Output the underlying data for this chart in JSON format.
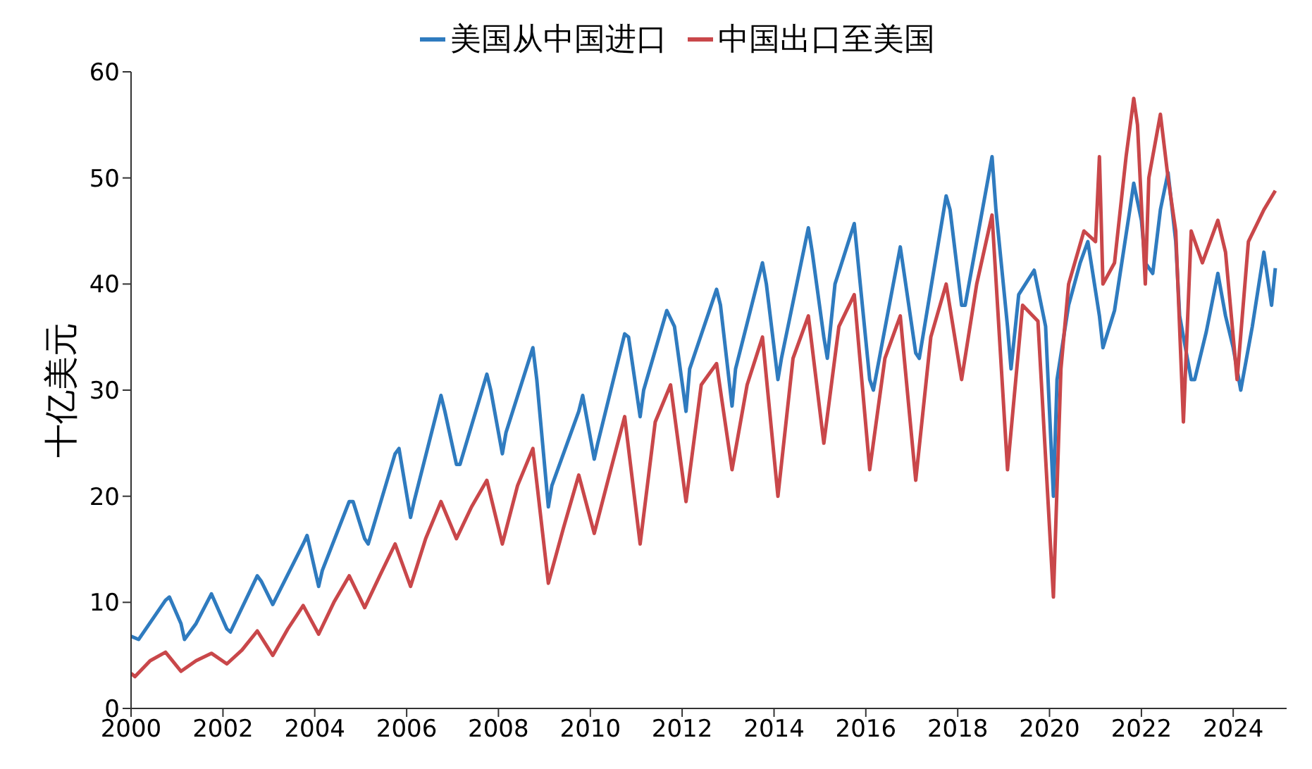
{
  "chart_data": {
    "type": "line",
    "ylabel": "十亿美元",
    "legend": "top",
    "marker": "none",
    "line_style": "solid",
    "xlim": [
      "2000-01",
      "2025-03"
    ],
    "xticks": [
      "2000",
      "2002",
      "2004",
      "2006",
      "2008",
      "2010",
      "2012",
      "2014",
      "2016",
      "2018",
      "2020",
      "2022",
      "2024"
    ],
    "ylim": [
      0,
      60
    ],
    "yticks": [
      0,
      10,
      20,
      30,
      40,
      50,
      60
    ],
    "series": [
      {
        "name": "美国从中国进口",
        "color": "#2f7bbf",
        "x": [
          "2000-01",
          "2000-03",
          "2000-10",
          "2000-11",
          "2001-02",
          "2001-03",
          "2001-06",
          "2001-10",
          "2002-02",
          "2002-03",
          "2002-10",
          "2002-11",
          "2003-02",
          "2003-10",
          "2003-11",
          "2004-02",
          "2004-03",
          "2004-10",
          "2004-11",
          "2005-02",
          "2005-03",
          "2005-10",
          "2005-11",
          "2006-02",
          "2006-03",
          "2006-10",
          "2006-11",
          "2007-02",
          "2007-03",
          "2007-10",
          "2007-11",
          "2008-02",
          "2008-03",
          "2008-10",
          "2008-11",
          "2009-02",
          "2009-03",
          "2009-10",
          "2009-11",
          "2010-02",
          "2010-03",
          "2010-10",
          "2010-11",
          "2011-02",
          "2011-03",
          "2011-09",
          "2011-11",
          "2012-02",
          "2012-03",
          "2012-10",
          "2012-11",
          "2013-02",
          "2013-03",
          "2013-10",
          "2013-11",
          "2014-02",
          "2014-03",
          "2014-10",
          "2014-11",
          "2015-02",
          "2015-03",
          "2015-05",
          "2015-10",
          "2015-11",
          "2016-02",
          "2016-03",
          "2016-10",
          "2016-11",
          "2017-02",
          "2017-03",
          "2017-10",
          "2017-11",
          "2018-02",
          "2018-03",
          "2018-10",
          "2018-11",
          "2019-02",
          "2019-03",
          "2019-05",
          "2019-09",
          "2019-12",
          "2020-02",
          "2020-03",
          "2020-06",
          "2020-09",
          "2020-11",
          "2021-02",
          "2021-03",
          "2021-06",
          "2021-10",
          "2021-11",
          "2022-01",
          "2022-02",
          "2022-04",
          "2022-06",
          "2022-08",
          "2022-10",
          "2022-11",
          "2023-02",
          "2023-03",
          "2023-06",
          "2023-09",
          "2023-11",
          "2024-01",
          "2024-03",
          "2024-06",
          "2024-09",
          "2024-11",
          "2024-12"
        ],
        "values": [
          6.8,
          6.5,
          10.2,
          10.5,
          8,
          6.5,
          8,
          10.8,
          7.5,
          7.2,
          12.5,
          12,
          9.8,
          15.5,
          16.3,
          11.5,
          13,
          19.5,
          19.5,
          16,
          15.5,
          24,
          24.5,
          18,
          19.5,
          29.5,
          28,
          23,
          23,
          31.5,
          30,
          24,
          26,
          34,
          31,
          19,
          21,
          28,
          29.5,
          23.5,
          25,
          35.3,
          35,
          27.5,
          30,
          37.5,
          36,
          28,
          32,
          39.5,
          38,
          28.5,
          32,
          42,
          40,
          31,
          33,
          45.3,
          43,
          35,
          33,
          40,
          45.7,
          42,
          31,
          30,
          43.5,
          41,
          33.5,
          33,
          48.3,
          47,
          38,
          38,
          52,
          47,
          36,
          32,
          39,
          41.3,
          36,
          20,
          31,
          38,
          42,
          44,
          37,
          34,
          37.5,
          47,
          49.5,
          46,
          42,
          41,
          47,
          50.5,
          44,
          37,
          31,
          31,
          35.5,
          41,
          37,
          34,
          30,
          36,
          43,
          38,
          41.5
        ]
      },
      {
        "name": "中国出口至美国",
        "color": "#c9474a",
        "x": [
          "2000-01",
          "2000-02",
          "2000-06",
          "2000-10",
          "2001-02",
          "2001-06",
          "2001-10",
          "2002-02",
          "2002-06",
          "2002-10",
          "2003-02",
          "2003-06",
          "2003-10",
          "2004-02",
          "2004-06",
          "2004-10",
          "2005-02",
          "2005-06",
          "2005-10",
          "2006-02",
          "2006-06",
          "2006-10",
          "2007-02",
          "2007-06",
          "2007-10",
          "2008-02",
          "2008-06",
          "2008-10",
          "2009-02",
          "2009-06",
          "2009-10",
          "2010-02",
          "2010-06",
          "2010-10",
          "2011-02",
          "2011-06",
          "2011-10",
          "2012-02",
          "2012-06",
          "2012-10",
          "2013-02",
          "2013-06",
          "2013-10",
          "2014-02",
          "2014-06",
          "2014-10",
          "2015-02",
          "2015-06",
          "2015-10",
          "2016-02",
          "2016-06",
          "2016-10",
          "2017-02",
          "2017-06",
          "2017-10",
          "2018-02",
          "2018-06",
          "2018-10",
          "2019-02",
          "2019-06",
          "2019-10",
          "2020-02",
          "2020-04",
          "2020-06",
          "2020-10",
          "2021-01",
          "2021-02",
          "2021-03",
          "2021-06",
          "2021-09",
          "2021-11",
          "2021-12",
          "2022-02",
          "2022-03",
          "2022-06",
          "2022-08",
          "2022-10",
          "2022-12",
          "2023-02",
          "2023-05",
          "2023-09",
          "2023-11",
          "2024-02",
          "2024-05",
          "2024-09",
          "2024-12"
        ],
        "values": [
          3.3,
          3,
          4.5,
          5.3,
          3.5,
          4.5,
          5.2,
          4.2,
          5.5,
          7.3,
          5,
          7.5,
          9.7,
          7,
          10,
          12.5,
          9.5,
          12.5,
          15.5,
          11.5,
          16,
          19.5,
          16,
          19,
          21.5,
          15.5,
          21,
          24.5,
          11.8,
          17,
          22,
          16.5,
          22,
          27.5,
          15.5,
          27,
          30.5,
          19.5,
          30.5,
          32.5,
          22.5,
          30.5,
          35,
          20,
          33,
          37,
          25,
          36,
          39,
          22.5,
          33,
          37,
          21.5,
          35,
          40,
          31,
          40,
          46.5,
          22.5,
          38,
          36.5,
          10.5,
          32,
          40,
          45,
          44,
          52,
          40,
          42,
          52,
          57.5,
          55,
          40,
          50,
          56,
          50,
          45,
          27,
          45,
          42,
          46,
          43,
          31,
          44,
          47,
          48.8
        ]
      }
    ]
  }
}
